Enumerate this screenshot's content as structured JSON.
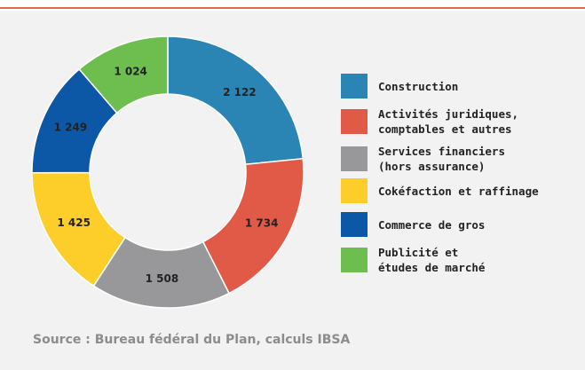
{
  "chart_data": {
    "type": "pie",
    "categories": [
      "Construction",
      "Activités juridiques,\ncomptables et autres",
      "Services financiers\n(hors assurance)",
      "Cokéfaction et raffinage",
      "Commerce de gros",
      "Publicité et\nétudes de marché"
    ],
    "values": [
      2122,
      1734,
      1508,
      1425,
      1249,
      1024
    ],
    "value_labels": [
      "2 122",
      "1 734",
      "1 508",
      "1 425",
      "1 249",
      "1 024"
    ],
    "colors": [
      "#2a85b5",
      "#e05a47",
      "#98989a",
      "#fdcd2a",
      "#0d58a6",
      "#6dbe4f"
    ],
    "source": "Source : Bureau fédéral du Plan, calculs IBSA"
  }
}
